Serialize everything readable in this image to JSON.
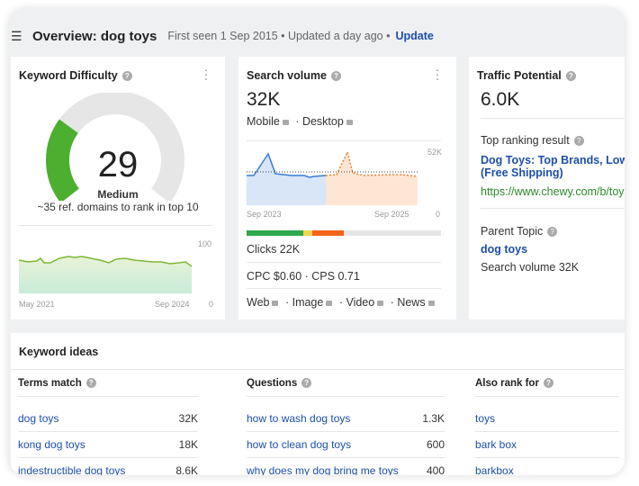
{
  "header": {
    "menu_icon": "hamburger-icon",
    "title": "Overview: dog toys",
    "meta": "First seen 1 Sep 2015 • Updated a day ago •",
    "update": "Update"
  },
  "kd": {
    "title": "Keyword Difficulty",
    "value": "29",
    "level": "Medium",
    "subtitle": "~35 ref. domains to rank in top 10",
    "score": 29,
    "chart": {
      "y_max": "100",
      "y_min": "0",
      "x_start": "May 2021",
      "x_end": "Sep 2024"
    }
  },
  "sv": {
    "title": "Search volume",
    "value": "32K",
    "mobile": "Mobile",
    "desktop": "Desktop",
    "chart": {
      "y_max": "52K",
      "y_min": "0",
      "x_start": "Sep 2023",
      "x_end": "Sep 2025"
    },
    "clicks": "Clicks 22K",
    "cpc": "CPC $0.60",
    "cps": "CPS 0.71",
    "serp": [
      "Web",
      "Image",
      "Video",
      "News"
    ],
    "click_bar": {
      "green": 0.29,
      "yellow": 0.05,
      "orange": 0.16
    }
  },
  "tp": {
    "title": "Traffic Potential",
    "value": "6.0K",
    "top_label": "Top ranking result",
    "top_title_1": "Dog Toys: Top Brands, Low",
    "top_title_2": "(Free Shipping)",
    "top_url": "https://www.chewy.com/b/toys",
    "parent_label": "Parent Topic",
    "parent": "dog toys",
    "parent_sv": "Search volume 32K"
  },
  "ideas": {
    "title": "Keyword ideas",
    "terms": {
      "label": "Terms match",
      "rows": [
        {
          "k": "dog toys",
          "v": "32K"
        },
        {
          "k": "kong dog toys",
          "v": "18K"
        },
        {
          "k": "indestructible dog toys",
          "v": "8.6K"
        }
      ]
    },
    "questions": {
      "label": "Questions",
      "rows": [
        {
          "k": "how to wash dog toys",
          "v": "1.3K"
        },
        {
          "k": "how to clean dog toys",
          "v": "600"
        },
        {
          "k": "why does my dog bring me toys",
          "v": "400"
        }
      ]
    },
    "also": {
      "label": "Also rank for",
      "rows": [
        {
          "k": "toys"
        },
        {
          "k": "bark box"
        },
        {
          "k": "barkbox"
        }
      ]
    }
  }
}
